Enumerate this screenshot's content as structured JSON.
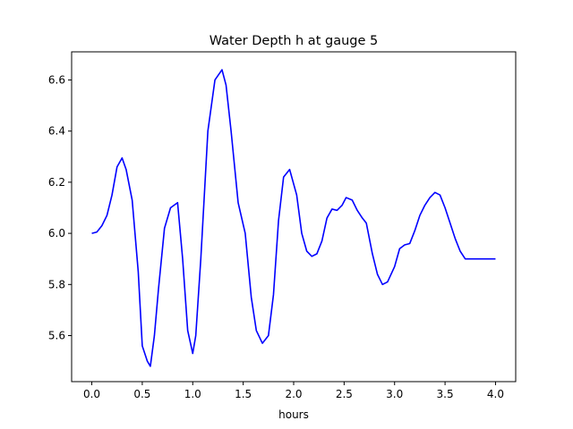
{
  "chart_data": {
    "type": "line",
    "title": "Water Depth h at gauge 5",
    "xlabel": "hours",
    "ylabel": "",
    "xlim": [
      -0.2,
      4.2
    ],
    "ylim": [
      5.42,
      6.71
    ],
    "grid": false,
    "legend": "none",
    "x_ticks": [
      0.0,
      0.5,
      1.0,
      1.5,
      2.0,
      2.5,
      3.0,
      3.5,
      4.0
    ],
    "x_tick_labels": [
      "0.0",
      "0.5",
      "1.0",
      "1.5",
      "2.0",
      "2.5",
      "3.0",
      "3.5",
      "4.0"
    ],
    "y_ticks": [
      5.6,
      5.8,
      6.0,
      6.2,
      6.4,
      6.6
    ],
    "y_tick_labels": [
      "5.6",
      "5.8",
      "6.0",
      "6.2",
      "6.4",
      "6.6"
    ],
    "series": [
      {
        "name": "",
        "color": "#0000ff",
        "x": [
          0.0,
          0.05,
          0.1,
          0.15,
          0.2,
          0.25,
          0.3,
          0.34,
          0.4,
          0.46,
          0.5,
          0.55,
          0.58,
          0.62,
          0.66,
          0.72,
          0.78,
          0.85,
          0.9,
          0.95,
          1.0,
          1.03,
          1.08,
          1.15,
          1.22,
          1.29,
          1.33,
          1.38,
          1.45,
          1.52,
          1.58,
          1.63,
          1.69,
          1.75,
          1.8,
          1.85,
          1.9,
          1.96,
          2.03,
          2.08,
          2.13,
          2.18,
          2.23,
          2.28,
          2.33,
          2.38,
          2.43,
          2.48,
          2.52,
          2.58,
          2.63,
          2.68,
          2.72,
          2.78,
          2.83,
          2.88,
          2.93,
          3.0,
          3.05,
          3.1,
          3.15,
          3.2,
          3.25,
          3.3,
          3.35,
          3.4,
          3.45,
          3.5,
          3.55,
          3.6,
          3.65,
          3.7,
          3.75,
          3.8,
          3.85,
          3.9,
          3.95,
          4.0
        ],
        "y": [
          6.0,
          6.005,
          6.03,
          6.07,
          6.15,
          6.26,
          6.295,
          6.25,
          6.13,
          5.85,
          5.56,
          5.5,
          5.48,
          5.6,
          5.78,
          6.02,
          6.1,
          6.12,
          5.9,
          5.62,
          5.53,
          5.6,
          5.9,
          6.4,
          6.6,
          6.64,
          6.58,
          6.4,
          6.12,
          6.0,
          5.75,
          5.62,
          5.57,
          5.6,
          5.76,
          6.05,
          6.22,
          6.25,
          6.15,
          6.0,
          5.93,
          5.91,
          5.92,
          5.97,
          6.06,
          6.095,
          6.09,
          6.11,
          6.14,
          6.13,
          6.09,
          6.06,
          6.04,
          5.92,
          5.84,
          5.8,
          5.81,
          5.87,
          5.94,
          5.955,
          5.96,
          6.01,
          6.07,
          6.11,
          6.14,
          6.16,
          6.15,
          6.1,
          6.04,
          5.98,
          5.93,
          5.9,
          5.9,
          5.9,
          5.9,
          5.9,
          5.9,
          5.9
        ]
      }
    ]
  }
}
